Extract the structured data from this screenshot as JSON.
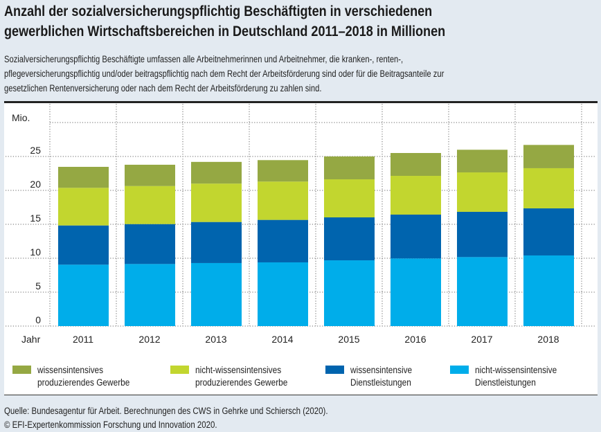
{
  "header": {
    "title_line1": "Anzahl der sozialversicherungspflichtig Beschäftigten in verschiedenen",
    "title_line2": "gewerblichen Wirtschaftsbereichen in Deutschland 2011–2018 in Millionen",
    "subtitle_line1": "Sozialversicherungspflichtig Beschäftigte umfassen alle Arbeitnehmerinnen und Arbeitnehmer, die kranken-, renten-,",
    "subtitle_line2": "pflegeversicherungspflichtig und/oder beitragspflichtig nach dem Recht der Arbeitsförderung sind oder für die Beitragsanteile zur",
    "subtitle_line3": "gesetzlichen Rentenversicherung oder nach dem Recht der Arbeitsförderung zu zahlen sind."
  },
  "footer": {
    "source": "Quelle: Bundesagentur für Arbeit. Berechnungen des CWS in Gehrke und Schiersch (2020).",
    "copyright": "© EFI-Expertenkommission Forschung und Innovation 2020."
  },
  "chart_data": {
    "type": "bar",
    "stacked": true,
    "title": "Anzahl der sozialversicherungspflichtig Beschäftigten in verschiedenen gewerblichen Wirtschaftsbereichen in Deutschland 2011–2018 in Millionen",
    "xlabel": "Jahr",
    "ylabel": "Mio.",
    "ylim": [
      0,
      30
    ],
    "yticks": [
      0,
      5,
      10,
      15,
      20,
      25
    ],
    "ytick_labels": [
      "0",
      "5",
      "10",
      "15",
      "20",
      "25"
    ],
    "grid": true,
    "legend_position": "bottom",
    "categories": [
      "2011",
      "2012",
      "2013",
      "2014",
      "2015",
      "2016",
      "2017",
      "2018"
    ],
    "series": [
      {
        "name": "nicht-wissensintensive Dienstleistungen",
        "label_line1": "nicht-wissensintensive",
        "label_line2": "Dienstleistungen",
        "color": "#00ADEA",
        "values": [
          9.05,
          9.15,
          9.29,
          9.39,
          9.69,
          9.97,
          10.17,
          10.41
        ]
      },
      {
        "name": "wissensintensive Dienstleistungen",
        "label_line1": "wissensintensive",
        "label_line2": "Dienstleistungen",
        "color": "#0064AE",
        "values": [
          5.78,
          5.88,
          6.05,
          6.26,
          6.33,
          6.46,
          6.67,
          6.94
        ]
      },
      {
        "name": "nicht-wissensintensives produzierendes Gewerbe",
        "label_line1": "nicht-wissensintensives",
        "label_line2": "produzierendes Gewerbe",
        "color": "#C2D62F",
        "values": [
          5.55,
          5.61,
          5.66,
          5.65,
          5.61,
          5.71,
          5.81,
          5.92
        ]
      },
      {
        "name": "wissensintensives produzierendes Gewerbe",
        "label_line1": "wissensintensives",
        "label_line2": "produzierendes Gewerbe",
        "color": "#95A843",
        "values": [
          3.09,
          3.14,
          3.2,
          3.16,
          3.37,
          3.37,
          3.34,
          3.43
        ]
      }
    ]
  }
}
